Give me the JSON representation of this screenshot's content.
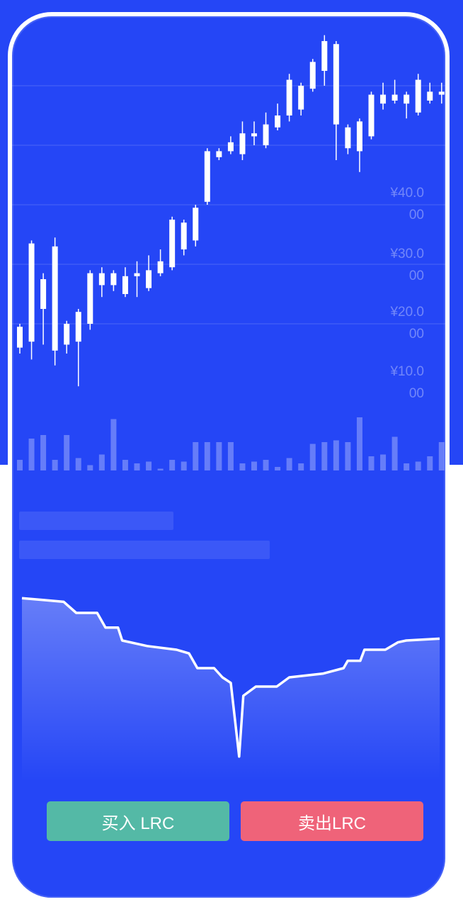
{
  "colors": {
    "background": "#2546f6",
    "frame": "#ffffff",
    "buy": "#54b9a6",
    "sell": "#ef6379"
  },
  "price_axis": [
    {
      "line1": "¥40.0",
      "line2": "00"
    },
    {
      "line1": "¥30.0",
      "line2": "00"
    },
    {
      "line1": "¥20.0",
      "line2": "00"
    },
    {
      "line1": "¥10.0",
      "line2": "00"
    }
  ],
  "chart_data": {
    "type": "candlestick",
    "ylim": [
      0,
      55
    ],
    "candles": [
      {
        "o": 6.0,
        "c": 9.5,
        "h": 10.0,
        "l": 5.0
      },
      {
        "o": 7.0,
        "c": 23.5,
        "h": 24.0,
        "l": 4.0
      },
      {
        "o": 12.5,
        "c": 17.5,
        "h": 18.5,
        "l": 6.5
      },
      {
        "o": 5.5,
        "c": 23.0,
        "h": 24.5,
        "l": 3.0
      },
      {
        "o": 6.5,
        "c": 10.0,
        "h": 10.5,
        "l": 5.0
      },
      {
        "o": 7.0,
        "c": 12.0,
        "h": 12.5,
        "l": -0.5
      },
      {
        "o": 10.0,
        "c": 18.5,
        "h": 19.0,
        "l": 9.0
      },
      {
        "o": 18.5,
        "c": 16.5,
        "h": 19.5,
        "l": 14.5
      },
      {
        "o": 16.5,
        "c": 18.5,
        "h": 19.0,
        "l": 15.5
      },
      {
        "o": 15.0,
        "c": 18.0,
        "h": 19.5,
        "l": 14.5
      },
      {
        "o": 18.5,
        "c": 18.0,
        "h": 20.5,
        "l": 14.5
      },
      {
        "o": 16.0,
        "c": 19.0,
        "h": 21.5,
        "l": 15.5
      },
      {
        "o": 18.5,
        "c": 20.5,
        "h": 22.5,
        "l": 18.0
      },
      {
        "o": 19.5,
        "c": 27.5,
        "h": 28.0,
        "l": 19.0
      },
      {
        "o": 22.5,
        "c": 27.0,
        "h": 27.5,
        "l": 21.5
      },
      {
        "o": 24.0,
        "c": 29.5,
        "h": 30.0,
        "l": 23.0
      },
      {
        "o": 30.5,
        "c": 39.0,
        "h": 39.5,
        "l": 30.0
      },
      {
        "o": 39.0,
        "c": 38.0,
        "h": 39.5,
        "l": 37.5
      },
      {
        "o": 39.0,
        "c": 40.5,
        "h": 41.5,
        "l": 38.5
      },
      {
        "o": 38.5,
        "c": 42.0,
        "h": 44.0,
        "l": 37.5
      },
      {
        "o": 42.0,
        "c": 41.5,
        "h": 44.0,
        "l": 40.0
      },
      {
        "o": 40.0,
        "c": 43.5,
        "h": 45.5,
        "l": 39.5
      },
      {
        "o": 43.0,
        "c": 45.0,
        "h": 47.0,
        "l": 42.5
      },
      {
        "o": 45.0,
        "c": 51.0,
        "h": 52.0,
        "l": 44.0
      },
      {
        "o": 46.0,
        "c": 50.0,
        "h": 50.5,
        "l": 45.0
      },
      {
        "o": 49.5,
        "c": 54.0,
        "h": 54.5,
        "l": 49.0
      },
      {
        "o": 52.5,
        "c": 57.5,
        "h": 58.5,
        "l": 50.0
      },
      {
        "o": 57.0,
        "c": 43.5,
        "h": 57.5,
        "l": 37.5
      },
      {
        "o": 43.0,
        "c": 39.5,
        "h": 43.5,
        "l": 38.5
      },
      {
        "o": 44.0,
        "c": 39.0,
        "h": 44.5,
        "l": 35.5
      },
      {
        "o": 41.5,
        "c": 48.5,
        "h": 49.0,
        "l": 41.0
      },
      {
        "o": 48.5,
        "c": 47.0,
        "h": 50.5,
        "l": 46.0
      },
      {
        "o": 47.5,
        "c": 48.5,
        "h": 51.0,
        "l": 47.0
      },
      {
        "o": 47.0,
        "c": 48.5,
        "h": 49.0,
        "l": 44.5
      },
      {
        "o": 45.5,
        "c": 51.0,
        "h": 52.0,
        "l": 45.0
      },
      {
        "o": 47.5,
        "c": 49.0,
        "h": 50.5,
        "l": 47.0
      },
      {
        "o": 48.5,
        "c": 49.0,
        "h": 50.5,
        "l": 47.0
      }
    ],
    "volumes": [
      0.3,
      0.9,
      1.0,
      0.3,
      1.0,
      0.35,
      0.15,
      0.45,
      1.45,
      0.3,
      0.2,
      0.25,
      0.05,
      0.3,
      0.25,
      0.8,
      0.8,
      0.8,
      0.8,
      0.2,
      0.25,
      0.3,
      0.1,
      0.35,
      0.2,
      0.75,
      0.8,
      0.85,
      0.8,
      1.5,
      0.4,
      0.45,
      0.95,
      0.2,
      0.25,
      0.4,
      0.8
    ]
  },
  "depth_chart": {
    "type": "area",
    "bids": [
      [
        0,
        0.88
      ],
      [
        0.05,
        0.87
      ],
      [
        0.1,
        0.86
      ],
      [
        0.13,
        0.8
      ],
      [
        0.18,
        0.8
      ],
      [
        0.2,
        0.72
      ],
      [
        0.23,
        0.72
      ],
      [
        0.24,
        0.65
      ],
      [
        0.3,
        0.62
      ],
      [
        0.37,
        0.6
      ],
      [
        0.4,
        0.58
      ],
      [
        0.42,
        0.5
      ],
      [
        0.46,
        0.5
      ],
      [
        0.48,
        0.45
      ],
      [
        0.5,
        0.42
      ],
      [
        0.52,
        0.02
      ]
    ],
    "asks": [
      [
        0.53,
        0.35
      ],
      [
        0.56,
        0.4
      ],
      [
        0.61,
        0.4
      ],
      [
        0.64,
        0.45
      ],
      [
        0.72,
        0.47
      ],
      [
        0.77,
        0.5
      ],
      [
        0.78,
        0.54
      ],
      [
        0.81,
        0.54
      ],
      [
        0.82,
        0.6
      ],
      [
        0.87,
        0.6
      ],
      [
        0.9,
        0.64
      ],
      [
        0.92,
        0.65
      ],
      [
        1.0,
        0.66
      ]
    ]
  },
  "buttons": {
    "buy_label": "买入 LRC",
    "sell_label": "卖出LRC"
  }
}
